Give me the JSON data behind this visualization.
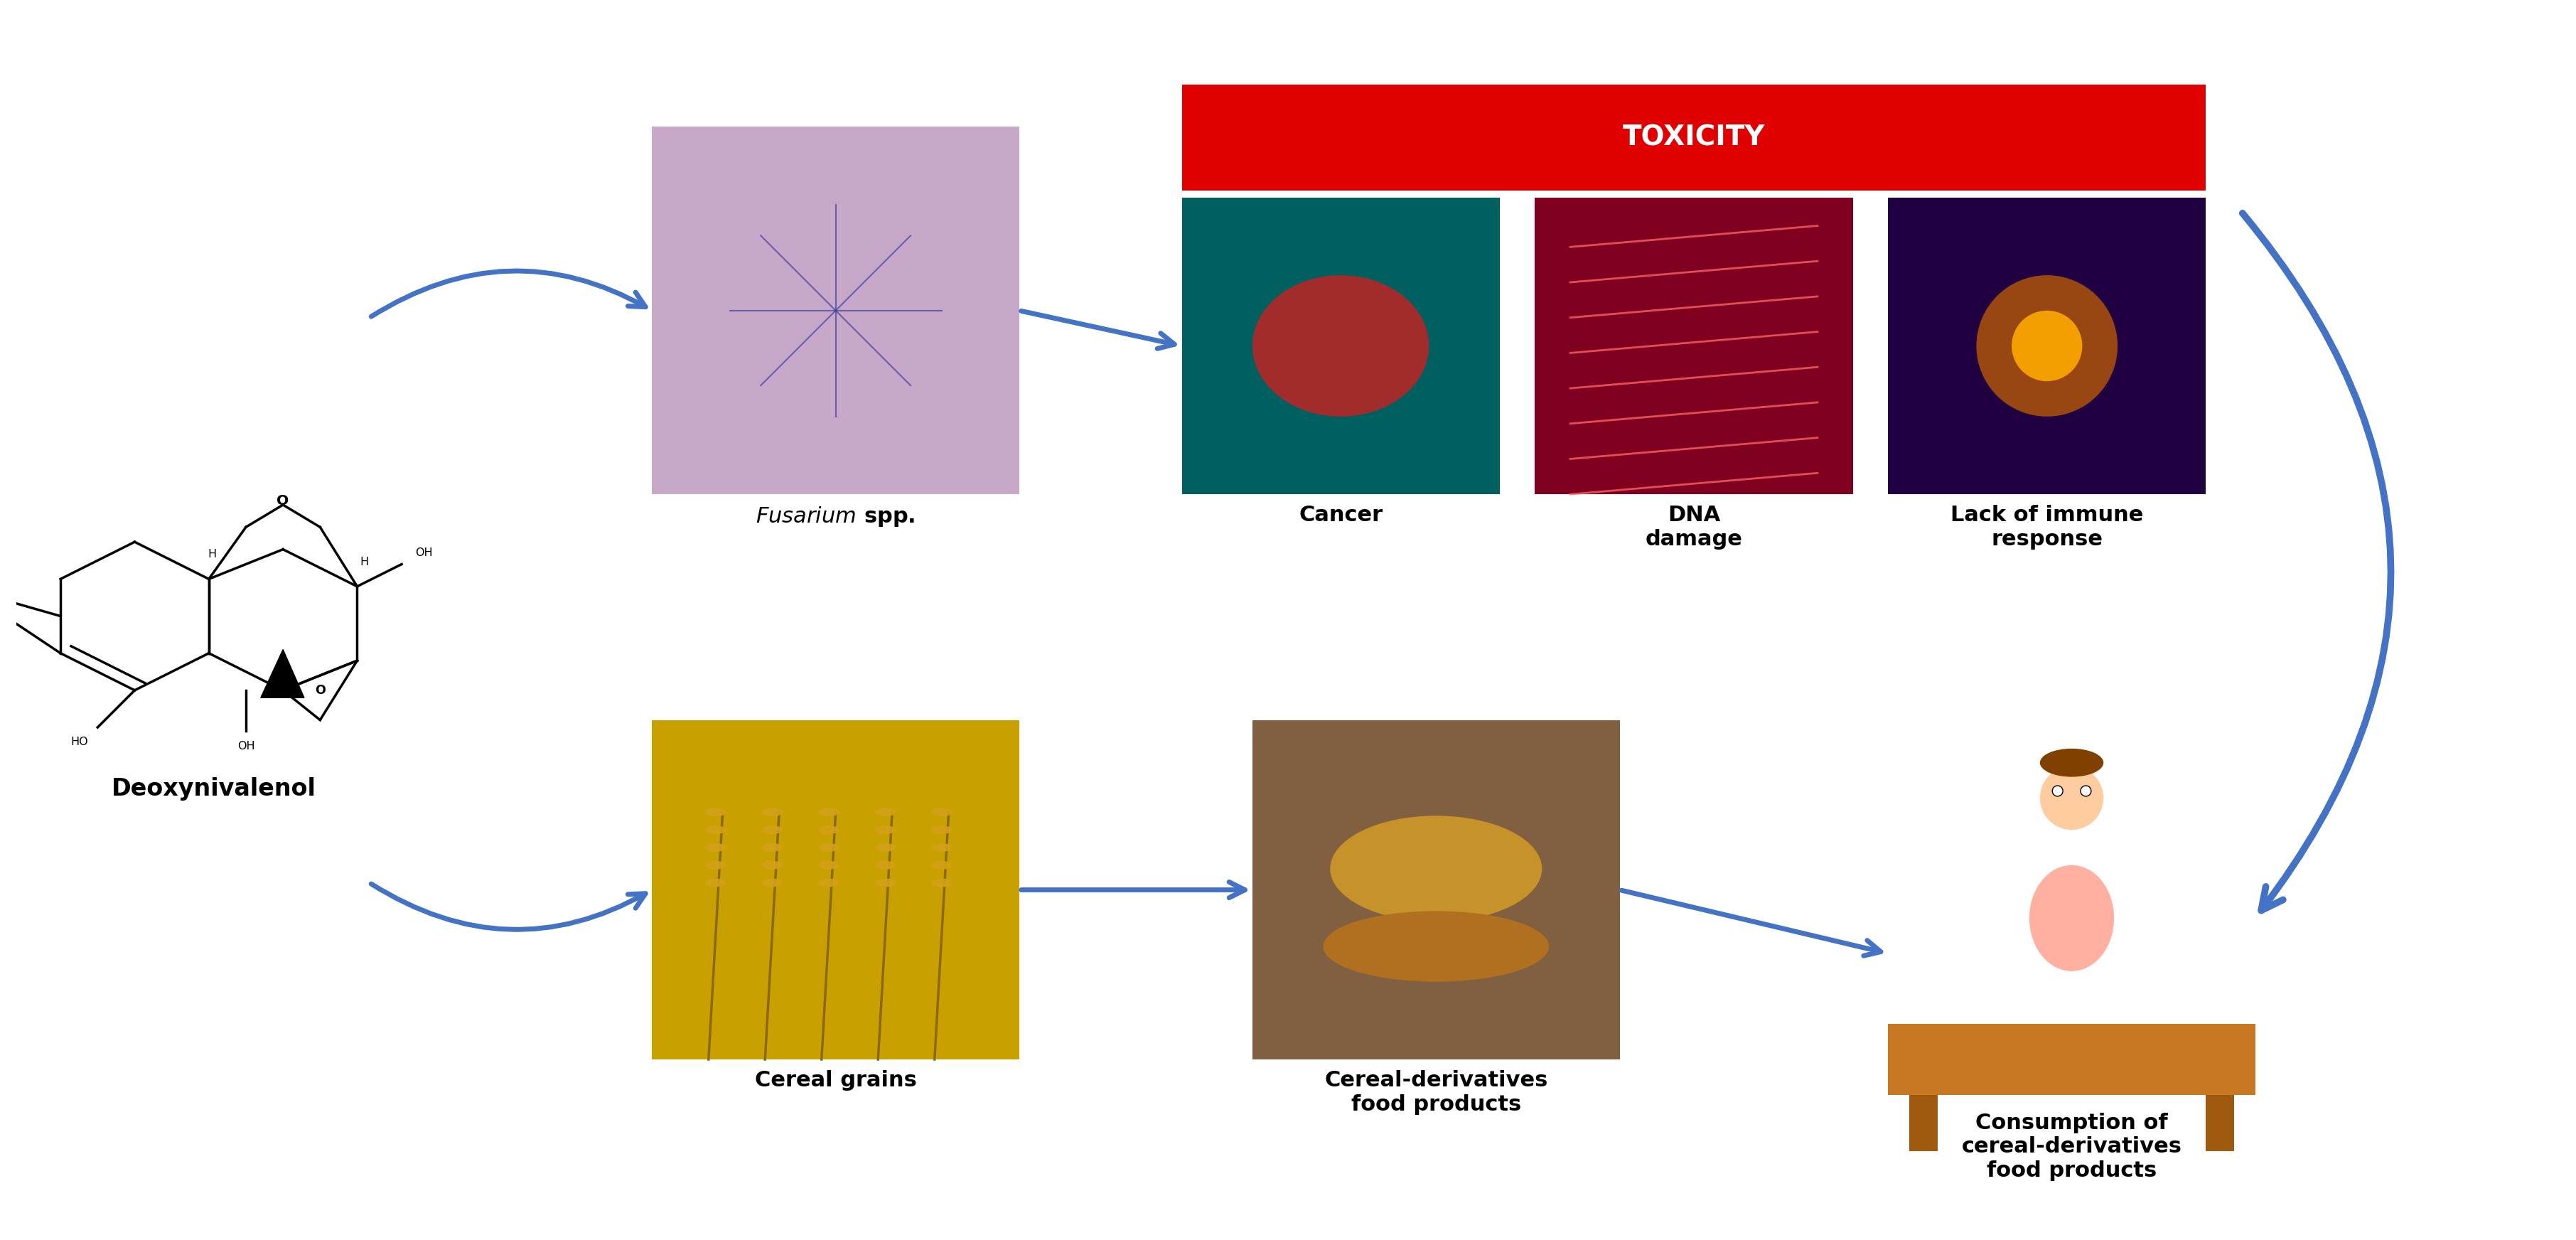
{
  "fig_width": 36.24,
  "fig_height": 17.44,
  "background_color": "#ffffff",
  "title_toxicity": "TOXICITY",
  "title_toxicity_color": "#ffffff",
  "title_toxicity_bg": "#e00000",
  "label_deoxynivalenol": "Deoxynivalenol",
  "label_fusarium": "Fusarium spp.",
  "label_cancer": "Cancer",
  "label_dna": "DNA\ndamage",
  "label_immune": "Lack of immune\nresponse",
  "label_cereal_grains": "Cereal grains",
  "label_cereal_deriv": "Cereal-derivatives\nfood products",
  "label_consumption": "Consumption of\ncereal-derivatives\nfood products",
  "arrow_color": "#4472c4",
  "label_fontsize": 22,
  "label_bold_fontsize": 24,
  "fusarium_color": "#c8a8c8",
  "cancer_color": "#006060",
  "dna_color": "#800020",
  "immune_color": "#200040",
  "cereal_color": "#c8a000",
  "bread_color": "#806040",
  "child_color": "#ffd0a0"
}
